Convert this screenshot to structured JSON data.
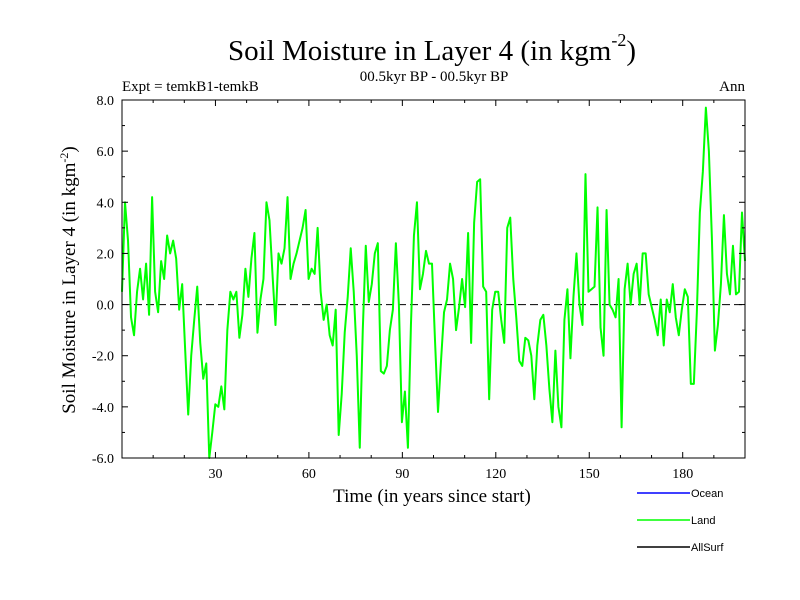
{
  "chart_data": {
    "type": "line",
    "title": "Soil Moisture in Layer 4 (in kgm",
    "title_sup": "-2",
    "title_suffix": ")",
    "subtitle": "00.5kyr BP - 00.5kyr BP",
    "left_label": "Expt = temkB1-temkB",
    "right_label": "Ann",
    "xlabel": "Time (in years since start)",
    "ylabel": "Soil Moisture in Layer 4 (in kgm",
    "ylabel_sup": "-2",
    "ylabel_suffix": ")",
    "xlim": [
      0,
      200
    ],
    "ylim": [
      -6.0,
      8.0
    ],
    "x_ticks": [
      30,
      60,
      90,
      120,
      150,
      180
    ],
    "y_ticks": [
      "-6.0",
      "-4.0",
      "-2.0",
      "0.0",
      "2.0",
      "4.0",
      "6.0",
      "8.0"
    ],
    "zero_line": true,
    "legend": [
      {
        "name": "Ocean",
        "color": "#0000ff"
      },
      {
        "name": "Land",
        "color": "#00ff00"
      },
      {
        "name": "AllSurf",
        "color": "#000000"
      }
    ],
    "series": [
      {
        "name": "Land",
        "color": "#00ff00",
        "values": [
          0.5,
          4.0,
          2.5,
          -0.5,
          -1.2,
          0.5,
          1.4,
          0.2,
          1.6,
          -0.4,
          4.2,
          0.5,
          -0.3,
          1.7,
          1.0,
          2.7,
          2.0,
          2.5,
          1.8,
          -0.2,
          0.8,
          -1.8,
          -4.3,
          -2.0,
          -0.6,
          0.7,
          -1.5,
          -2.9,
          -2.3,
          -6.0,
          -5.0,
          -3.9,
          -4.0,
          -3.2,
          -4.1,
          -1.0,
          0.5,
          0.2,
          0.5,
          -1.3,
          -0.4,
          1.4,
          0.3,
          1.8,
          2.8,
          -1.1,
          0.2,
          1.0,
          4.0,
          3.3,
          1.2,
          -0.8,
          2.0,
          1.6,
          2.2,
          4.2,
          1.0,
          1.6,
          2.0,
          2.5,
          3.0,
          3.7,
          1.0,
          1.4,
          1.2,
          3.0,
          0.5,
          -0.6,
          0.0,
          -1.2,
          -1.6,
          -0.2,
          -5.1,
          -3.5,
          -1.1,
          0.3,
          2.2,
          0.5,
          -2.0,
          -5.6,
          -1.0,
          2.3,
          0.1,
          0.8,
          2.0,
          2.4,
          -2.6,
          -2.7,
          -2.4,
          -1.0,
          -0.2,
          2.4,
          0.0,
          -4.6,
          -3.4,
          -5.6,
          -0.8,
          2.7,
          4.0,
          0.6,
          1.2,
          2.1,
          1.6,
          1.6,
          -1.4,
          -4.2,
          -2.2,
          -0.3,
          0.2,
          1.6,
          1.0,
          -1.0,
          -0.1,
          1.0,
          -0.1,
          2.8,
          -1.5,
          3.2,
          4.8,
          4.9,
          0.7,
          0.5,
          -3.7,
          -0.2,
          0.5,
          0.5,
          -0.6,
          -1.5,
          3.0,
          3.4,
          1.0,
          -0.5,
          -2.2,
          -2.4,
          -1.3,
          -1.4,
          -2.0,
          -3.7,
          -1.6,
          -0.6,
          -0.4,
          -1.6,
          -3.3,
          -4.6,
          -1.8,
          -4.0,
          -4.8,
          -0.6,
          0.6,
          -2.1,
          0.3,
          2.0,
          0.0,
          -0.8,
          5.1,
          0.5,
          0.6,
          0.7,
          3.8,
          -0.9,
          -2.0,
          3.7,
          0.0,
          -0.2,
          -0.5,
          1.0,
          -4.8,
          0.6,
          1.6,
          0.0,
          1.2,
          1.6,
          0.0,
          2.0,
          2.0,
          0.4,
          -0.1,
          -0.6,
          -1.2,
          0.2,
          -1.6,
          0.2,
          -0.3,
          0.8,
          -0.5,
          -1.2,
          -0.2,
          0.6,
          0.3,
          -3.1,
          -3.1,
          -0.3,
          3.6,
          5.2,
          7.7,
          6.0,
          2.6,
          -1.8,
          -0.8,
          0.8,
          3.5,
          1.2,
          0.4,
          2.3,
          0.4,
          0.5,
          3.6,
          1.7
        ]
      }
    ]
  }
}
